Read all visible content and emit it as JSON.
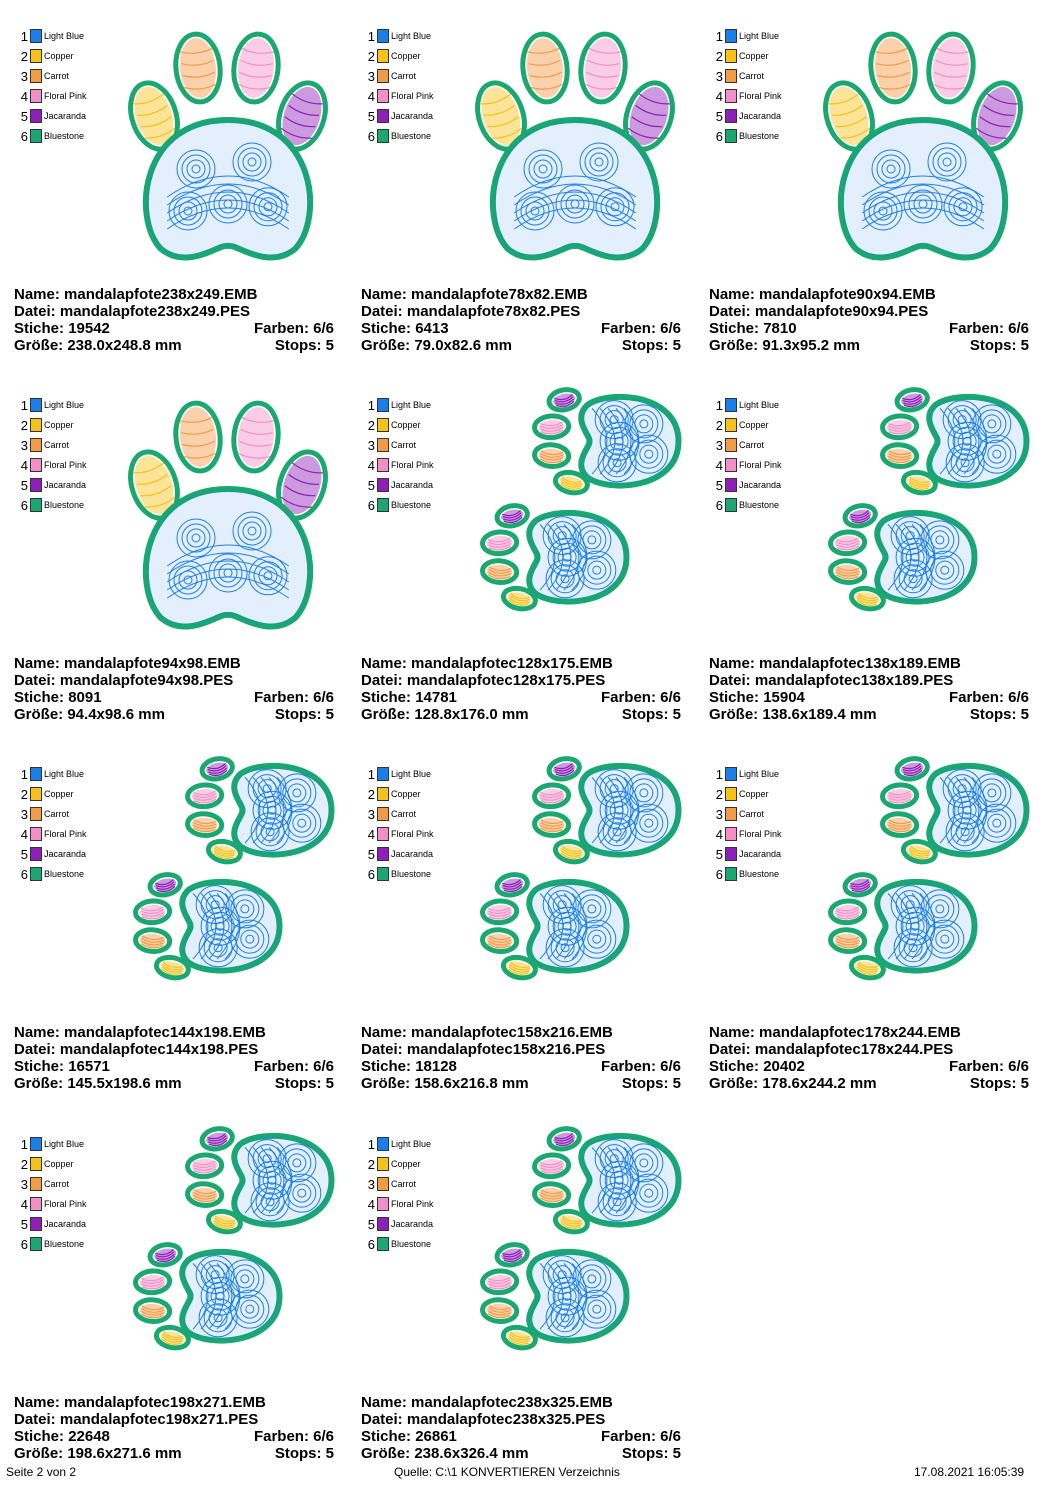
{
  "legend": [
    {
      "num": "1",
      "name": "Light Blue",
      "color": "#1a7fe8"
    },
    {
      "num": "2",
      "name": "Copper",
      "color": "#f6c21a"
    },
    {
      "num": "3",
      "name": "Carrot",
      "color": "#f39a45"
    },
    {
      "num": "4",
      "name": "Floral Pink",
      "color": "#f38fc6"
    },
    {
      "num": "5",
      "name": "Jacaranda",
      "color": "#8f1fb8"
    },
    {
      "num": "6",
      "name": "Bluestone",
      "color": "#1aa870"
    }
  ],
  "labels": {
    "name": "Name:",
    "datei": "Datei:",
    "stiche": "Stiche:",
    "farben": "Farben:",
    "groesse": "Größe:",
    "stops": "Stops:"
  },
  "designs": [
    {
      "name": "mandalapfote238x249.EMB",
      "file": "mandalapfote238x249.PES",
      "stitches": "19542",
      "colors": "6/6",
      "size": "238.0x248.8 mm",
      "stops": "5",
      "layout": "single"
    },
    {
      "name": "mandalapfote78x82.EMB",
      "file": "mandalapfote78x82.PES",
      "stitches": "6413",
      "colors": "6/6",
      "size": "79.0x82.6 mm",
      "stops": "5",
      "layout": "single"
    },
    {
      "name": "mandalapfote90x94.EMB",
      "file": "mandalapfote90x94.PES",
      "stitches": "7810",
      "colors": "6/6",
      "size": "91.3x95.2 mm",
      "stops": "5",
      "layout": "single"
    },
    {
      "name": "mandalapfote94x98.EMB",
      "file": "mandalapfote94x98.PES",
      "stitches": "8091",
      "colors": "6/6",
      "size": "94.4x98.6 mm",
      "stops": "5",
      "layout": "single"
    },
    {
      "name": "mandalapfotec128x175.EMB",
      "file": "mandalapfotec128x175.PES",
      "stitches": "14781",
      "colors": "6/6",
      "size": "128.8x176.0 mm",
      "stops": "5",
      "layout": "double"
    },
    {
      "name": "mandalapfotec138x189.EMB",
      "file": "mandalapfotec138x189.PES",
      "stitches": "15904",
      "colors": "6/6",
      "size": "138.6x189.4 mm",
      "stops": "5",
      "layout": "double"
    },
    {
      "name": "mandalapfotec144x198.EMB",
      "file": "mandalapfotec144x198.PES",
      "stitches": "16571",
      "colors": "6/6",
      "size": "145.5x198.6 mm",
      "stops": "5",
      "layout": "double"
    },
    {
      "name": "mandalapfotec158x216.EMB",
      "file": "mandalapfotec158x216.PES",
      "stitches": "18128",
      "colors": "6/6",
      "size": "158.6x216.8 mm",
      "stops": "5",
      "layout": "double"
    },
    {
      "name": "mandalapfotec178x244.EMB",
      "file": "mandalapfotec178x244.PES",
      "stitches": "20402",
      "colors": "6/6",
      "size": "178.6x244.2 mm",
      "stops": "5",
      "layout": "double"
    },
    {
      "name": "mandalapfotec198x271.EMB",
      "file": "mandalapfotec198x271.PES",
      "stitches": "22648",
      "colors": "6/6",
      "size": "198.6x271.6 mm",
      "stops": "5",
      "layout": "double"
    },
    {
      "name": "mandalapfotec238x325.EMB",
      "file": "mandalapfotec238x325.PES",
      "stitches": "26861",
      "colors": "6/6",
      "size": "238.6x326.4 mm",
      "stops": "5",
      "layout": "double"
    }
  ],
  "footer": {
    "page": "Seite 2 von 2",
    "source": "Quelle: C:\\1 KONVERTIEREN Verzeichnis",
    "datetime": "17.08.2021 16:05:39"
  }
}
